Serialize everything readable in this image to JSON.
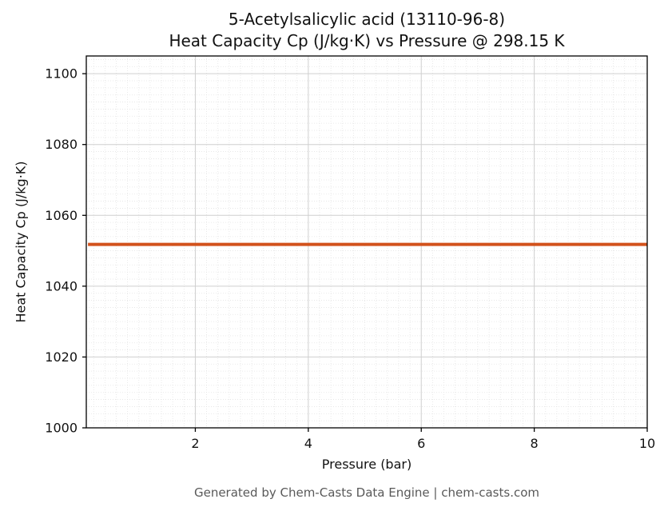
{
  "chart_data": {
    "type": "line",
    "title": "5-Acetylsalicylic acid (13110-96-8)",
    "subtitle": "Heat Capacity Cp (J/kg·K) vs Pressure @ 298.15 K",
    "xlabel": "Pressure (bar)",
    "ylabel": "Heat Capacity Cp (J/kg·K)",
    "xlim": [
      0.07,
      10.0
    ],
    "ylim": [
      1000,
      1105
    ],
    "xticks": [
      2,
      4,
      6,
      8,
      10
    ],
    "yticks": [
      1000,
      1020,
      1040,
      1060,
      1080,
      1100
    ],
    "grid": true,
    "minor_grid": true,
    "minor_x_step": 0.2,
    "minor_y_step": 2,
    "legend": "none",
    "series": [
      {
        "name": "Heat Capacity Cp",
        "color": "#d2521c",
        "x": [
          0.1,
          10.0
        ],
        "y": [
          1051.8,
          1051.8
        ]
      }
    ]
  },
  "footer": {
    "caption": "Generated by Chem-Casts Data Engine | chem-casts.com"
  },
  "colors": {
    "grid_major": "#cfcfcf",
    "grid_minor": "#e4e4e4",
    "axis": "#000000",
    "text": "#111111",
    "footer_text": "#595959"
  }
}
